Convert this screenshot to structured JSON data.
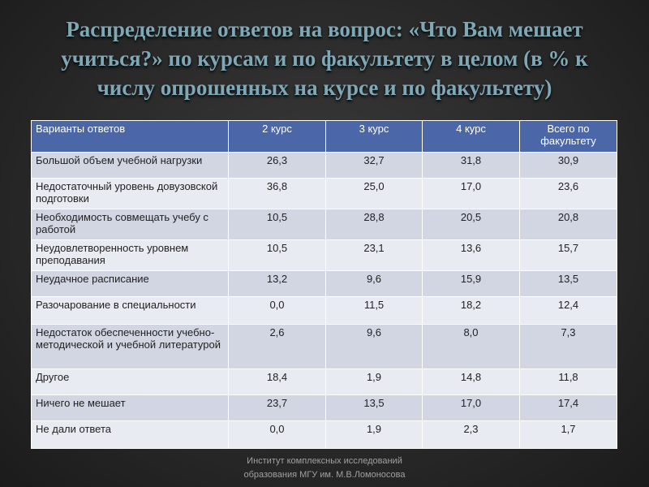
{
  "title": "Распределение ответов на вопрос: «Что Вам мешает учиться?» по курсам и по факультету в целом (в % к числу опрошенных на курсе и по факультету)",
  "table": {
    "headers": [
      "Варианты ответов",
      "2 курс",
      "3 курс",
      "4 курс",
      "Всего по факультету"
    ],
    "rows": [
      {
        "label": "Большой объем учебной нагрузки",
        "values": [
          "26,3",
          "32,7",
          "31,8",
          "30,9"
        ]
      },
      {
        "label": "Недостаточный уровень довузовской подготовки",
        "values": [
          "36,8",
          "25,0",
          "17,0",
          "23,6"
        ]
      },
      {
        "label": "Необходимость совмещать учебу с работой",
        "values": [
          "10,5",
          "28,8",
          "20,5",
          "20,8"
        ]
      },
      {
        "label": "Неудовлетворенность уровнем преподавания",
        "values": [
          "10,5",
          "23,1",
          "13,6",
          "15,7"
        ]
      },
      {
        "label": "Неудачное расписание",
        "values": [
          "13,2",
          "9,6",
          "15,9",
          "13,5"
        ]
      },
      {
        "label": "Разочарование в специальности",
        "values": [
          "0,0",
          "11,5",
          "18,2",
          "12,4"
        ]
      },
      {
        "label": "Недостаток обеспеченности учебно-методической и учебной литературой",
        "values": [
          "2,6",
          "9,6",
          "8,0",
          "7,3"
        ]
      },
      {
        "label": "Другое",
        "values": [
          "18,4",
          "1,9",
          "14,8",
          "11,8"
        ]
      },
      {
        "label": "Ничего не мешает",
        "values": [
          "23,7",
          "13,5",
          "17,0",
          "17,4"
        ]
      },
      {
        "label": "Не дали ответа",
        "values": [
          "0,0",
          "1,9",
          "2,3",
          "1,7"
        ]
      }
    ]
  },
  "footer": {
    "line1": "Институт комплексных исследований",
    "line2": "образования МГУ им. М.В.Ломоносова"
  }
}
